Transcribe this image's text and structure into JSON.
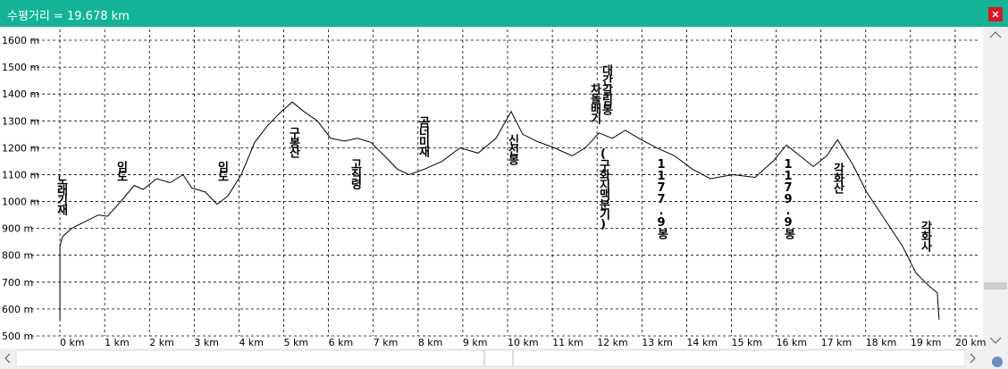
{
  "chart_data": {
    "type": "line",
    "title": "수평거리 = 19.678 km",
    "x": [
      0,
      0,
      0.06,
      0.26,
      0.56,
      0.86,
      1.06,
      1.36,
      1.66,
      1.86,
      2.16,
      2.46,
      2.75,
      2.95,
      3.25,
      3.51,
      3.75,
      4.05,
      4.35,
      4.65,
      4.95,
      5.19,
      5.45,
      5.75,
      6.05,
      6.35,
      6.65,
      6.95,
      7.25,
      7.54,
      7.8,
      8.14,
      8.54,
      8.94,
      9.34,
      9.74,
      10.08,
      10.34,
      10.64,
      11.04,
      11.44,
      11.74,
      12.04,
      12.34,
      12.63,
      12.93,
      13.33,
      13.73,
      14.13,
      14.53,
      15.03,
      15.53,
      15.93,
      16.23,
      16.53,
      16.83,
      17.13,
      17.37,
      17.72,
      18.02,
      18.42,
      18.82,
      19.12,
      19.42,
      19.6,
      19.64
    ],
    "series": [
      {
        "name": "elevation",
        "color": "#000000",
        "values": [
          560,
          835,
          870,
          900,
          925,
          950,
          945,
          1000,
          1060,
          1045,
          1085,
          1070,
          1100,
          1050,
          1035,
          990,
          1020,
          1100,
          1220,
          1285,
          1335,
          1370,
          1335,
          1300,
          1235,
          1225,
          1235,
          1220,
          1170,
          1120,
          1100,
          1120,
          1150,
          1200,
          1180,
          1235,
          1335,
          1250,
          1225,
          1200,
          1170,
          1200,
          1255,
          1235,
          1265,
          1235,
          1200,
          1170,
          1120,
          1085,
          1100,
          1090,
          1150,
          1210,
          1170,
          1130,
          1170,
          1230,
          1135,
          1035,
          935,
          835,
          735,
          685,
          660,
          560
        ]
      }
    ],
    "xlim": [
      -0.64,
      20.56
    ],
    "ylim": [
      460,
      1640
    ],
    "xticks": [
      {
        "value": 0,
        "label": "0 km"
      },
      {
        "value": 1,
        "label": "1 km"
      },
      {
        "value": 2,
        "label": "2 km"
      },
      {
        "value": 3,
        "label": "3 km"
      },
      {
        "value": 4,
        "label": "4 km"
      },
      {
        "value": 5,
        "label": "5 km"
      },
      {
        "value": 6,
        "label": "6 km"
      },
      {
        "value": 7,
        "label": "7 km"
      },
      {
        "value": 8,
        "label": "8 km"
      },
      {
        "value": 9,
        "label": "9 km"
      },
      {
        "value": 10,
        "label": "10 km"
      },
      {
        "value": 11,
        "label": "11 km"
      },
      {
        "value": 12,
        "label": "12 km"
      },
      {
        "value": 13,
        "label": "13 km"
      },
      {
        "value": 14,
        "label": "14 km"
      },
      {
        "value": 15,
        "label": "15 km"
      },
      {
        "value": 16,
        "label": "16 km"
      },
      {
        "value": 17,
        "label": "17 km"
      },
      {
        "value": 18,
        "label": "18 km"
      },
      {
        "value": 19,
        "label": "19 km"
      },
      {
        "value": 20,
        "label": "20 km"
      }
    ],
    "yticks": [
      {
        "value": 500,
        "label": "500 m"
      },
      {
        "value": 600,
        "label": "600 m"
      },
      {
        "value": 700,
        "label": "700 m"
      },
      {
        "value": 800,
        "label": "800 m"
      },
      {
        "value": 900,
        "label": "900 m"
      },
      {
        "value": 1000,
        "label": "1000 m"
      },
      {
        "value": 1100,
        "label": "1100 m"
      },
      {
        "value": 1200,
        "label": "1200 m"
      },
      {
        "value": 1300,
        "label": "1300 m"
      },
      {
        "value": 1400,
        "label": "1400 m"
      },
      {
        "value": 1500,
        "label": "1500 m"
      },
      {
        "value": 1600,
        "label": "1600 m"
      }
    ],
    "grid": true,
    "annotations": [
      "노래기재",
      "임도",
      "임도",
      "구봉산",
      "고직령",
      "곰너미재",
      "신선봉",
      "차돌배기",
      "대간갈림봉",
      "(구화지맥분기)",
      "1177.9봉",
      "1179.9봉",
      "각화산",
      "각화사"
    ]
  }
}
